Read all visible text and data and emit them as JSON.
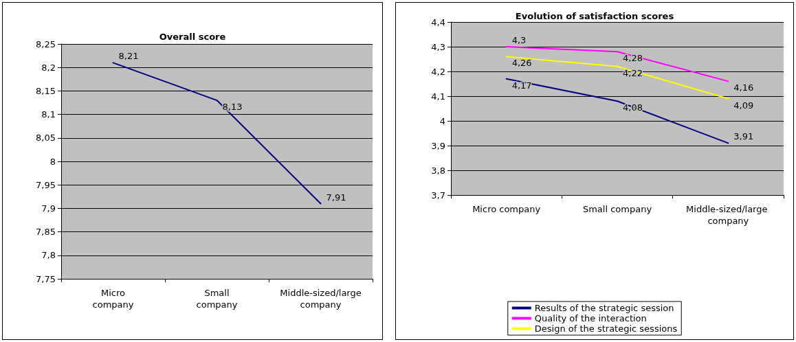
{
  "chart_data": [
    {
      "type": "line",
      "title": "Overall score",
      "categories": [
        "Micro company",
        "Small company",
        "Middle-sized/large company"
      ],
      "series": [
        {
          "color": "#000080",
          "values": [
            8.21,
            8.13,
            7.91
          ],
          "value_labels": [
            "8,21",
            "8,13",
            "7,91"
          ]
        }
      ],
      "ylim": [
        7.75,
        8.25
      ],
      "yticks": [
        {
          "value": 7.75,
          "label": "7,75"
        },
        {
          "value": 7.8,
          "label": "7,8"
        },
        {
          "value": 7.85,
          "label": "7,85"
        },
        {
          "value": 7.9,
          "label": "7,9"
        },
        {
          "value": 7.95,
          "label": "7,95"
        },
        {
          "value": 8,
          "label": "8"
        },
        {
          "value": 8.05,
          "label": "8,05"
        },
        {
          "value": 8.1,
          "label": "8,1"
        },
        {
          "value": 8.15,
          "label": "8,15"
        },
        {
          "value": 8.2,
          "label": "8,2"
        },
        {
          "value": 8.25,
          "label": "8,25"
        }
      ],
      "grid": "y",
      "marker": "none",
      "line_style": "solid"
    },
    {
      "type": "line",
      "title": "Evolution of satisfaction scores",
      "categories": [
        "Micro company",
        "Small company",
        "Middle-sized/large company"
      ],
      "series": [
        {
          "name": "Results of the strategic session",
          "color": "#000080",
          "values": [
            4.17,
            4.08,
            3.91
          ],
          "value_labels": [
            "4,17",
            "4,08",
            "3,91"
          ]
        },
        {
          "name": "Quality of the interaction",
          "color": "#ff00ff",
          "values": [
            4.3,
            4.28,
            4.16
          ],
          "value_labels": [
            "4,3",
            "4,28",
            "4,16"
          ]
        },
        {
          "name": "Design of the strategic sessions",
          "color": "#ffff00",
          "values": [
            4.26,
            4.22,
            4.09
          ],
          "value_labels": [
            "4,26",
            "4,22",
            "4,09"
          ]
        }
      ],
      "ylim": [
        3.7,
        4.4
      ],
      "yticks": [
        {
          "value": 3.7,
          "label": "3,7"
        },
        {
          "value": 3.8,
          "label": "3,8"
        },
        {
          "value": 3.9,
          "label": "3,9"
        },
        {
          "value": 4,
          "label": "4"
        },
        {
          "value": 4.1,
          "label": "4,1"
        },
        {
          "value": 4.2,
          "label": "4,2"
        },
        {
          "value": 4.3,
          "label": "4,3"
        },
        {
          "value": 4.4,
          "label": "4,4"
        }
      ],
      "grid": "y",
      "legend": "bottom",
      "marker": "none",
      "line_style": "solid"
    }
  ]
}
